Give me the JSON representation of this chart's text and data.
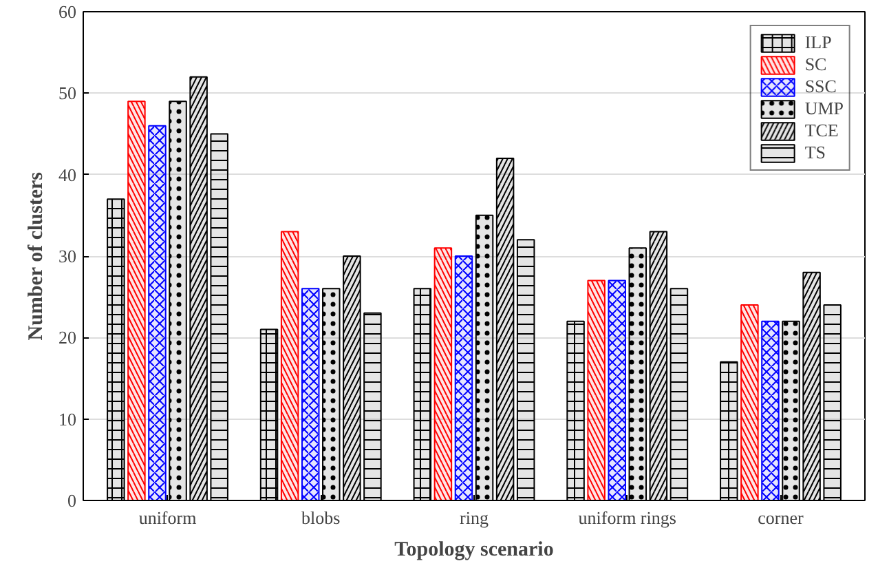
{
  "chart_data": {
    "type": "bar",
    "xlabel": "Topology scenario",
    "ylabel": "Number of clusters",
    "categories": [
      "uniform",
      "blobs",
      "ring",
      "uniform rings",
      "corner"
    ],
    "series": [
      {
        "name": "ILP",
        "color": "#000000",
        "values": [
          37,
          21,
          26,
          22,
          17
        ]
      },
      {
        "name": "SC",
        "color": "#ff0000",
        "values": [
          49,
          33,
          31,
          27,
          24
        ]
      },
      {
        "name": "SSC",
        "color": "#0000ff",
        "values": [
          46,
          26,
          30,
          27,
          22
        ]
      },
      {
        "name": "UMP",
        "color": "#000000",
        "values": [
          49,
          26,
          35,
          31,
          22
        ]
      },
      {
        "name": "TCE",
        "color": "#000000",
        "values": [
          52,
          30,
          42,
          33,
          28
        ]
      },
      {
        "name": "TS",
        "color": "#000000",
        "values": [
          45,
          23,
          32,
          26,
          24
        ]
      }
    ],
    "ylim": [
      0,
      60
    ],
    "yticks": [
      0,
      10,
      20,
      30,
      40,
      50,
      60
    ],
    "grid": "y",
    "legend": "top right"
  }
}
